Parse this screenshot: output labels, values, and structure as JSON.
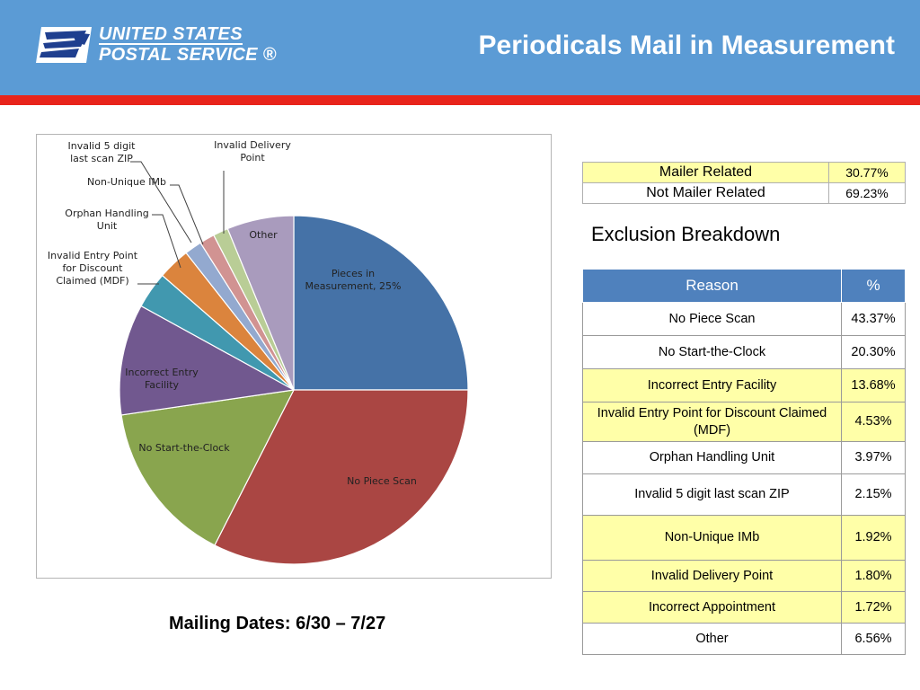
{
  "header": {
    "logo_line1": "UNITED STATES",
    "logo_line2": "POSTAL SERVICE ®",
    "title": "Periodicals Mail in Measurement"
  },
  "colors": {
    "header_bg": "#5b9bd5",
    "header_rule": "#e8241b",
    "table_header": "#4f81bd",
    "table_highlight": "#ffffa8"
  },
  "icons": {
    "logo": "usps-eagle-icon"
  },
  "chart_data": {
    "type": "pie",
    "title": "",
    "start": "12 o'clock, clockwise",
    "slices": [
      {
        "label": "Pieces in Measurement, 25%",
        "value": 25.0,
        "color": "#4572a7"
      },
      {
        "label": "No Piece Scan",
        "value": 32.5,
        "color": "#aa4643"
      },
      {
        "label": "No Start-the-Clock",
        "value": 15.2,
        "color": "#89a54e"
      },
      {
        "label": "Incorrect Entry Facility",
        "value": 10.3,
        "color": "#71588f"
      },
      {
        "label": "Invalid Entry Point for Discount Claimed (MDF)",
        "value": 3.4,
        "color": "#4198af"
      },
      {
        "label": "Orphan Handling Unit",
        "value": 3.0,
        "color": "#db843d"
      },
      {
        "label": "Non-Unique IMb",
        "value": 1.6,
        "color": "#93a9cf"
      },
      {
        "label": "Invalid 5 digit last scan ZIP",
        "value": 1.4,
        "color": "#d19392"
      },
      {
        "label": "Invalid Delivery Point",
        "value": 1.4,
        "color": "#b9cd96"
      },
      {
        "label": "Other",
        "value": 6.2,
        "color": "#a99bbd"
      }
    ]
  },
  "summary": {
    "rows": [
      {
        "label": "Mailer Related",
        "pct": "30.77%",
        "highlight": true
      },
      {
        "label": "Not Mailer Related",
        "pct": "69.23%",
        "highlight": false
      }
    ]
  },
  "breakdown": {
    "title": "Exclusion Breakdown",
    "headers": [
      "Reason",
      "%"
    ],
    "rows": [
      {
        "reason": "No Piece Scan",
        "pct": "43.37%",
        "highlight": false
      },
      {
        "reason": "No Start-the-Clock",
        "pct": "20.30%",
        "highlight": false
      },
      {
        "reason": "Incorrect Entry Facility",
        "pct": "13.68%",
        "highlight": true
      },
      {
        "reason": "Invalid Entry Point for Discount Claimed (MDF)",
        "pct": "4.53%",
        "highlight": true
      },
      {
        "reason": "Orphan Handling Unit",
        "pct": "3.97%",
        "highlight": false
      },
      {
        "reason": "Invalid 5 digit last scan ZIP",
        "pct": "2.15%",
        "highlight": false
      },
      {
        "reason": "Non-Unique IMb",
        "pct": "1.92%",
        "highlight": true
      },
      {
        "reason": "Invalid Delivery Point",
        "pct": "1.80%",
        "highlight": true
      },
      {
        "reason": "Incorrect Appointment",
        "pct": "1.72%",
        "highlight": true
      },
      {
        "reason": "Other",
        "pct": "6.56%",
        "highlight": false
      }
    ]
  },
  "footer": {
    "mailing_dates": "Mailing Dates: 6/30 – 7/27"
  }
}
